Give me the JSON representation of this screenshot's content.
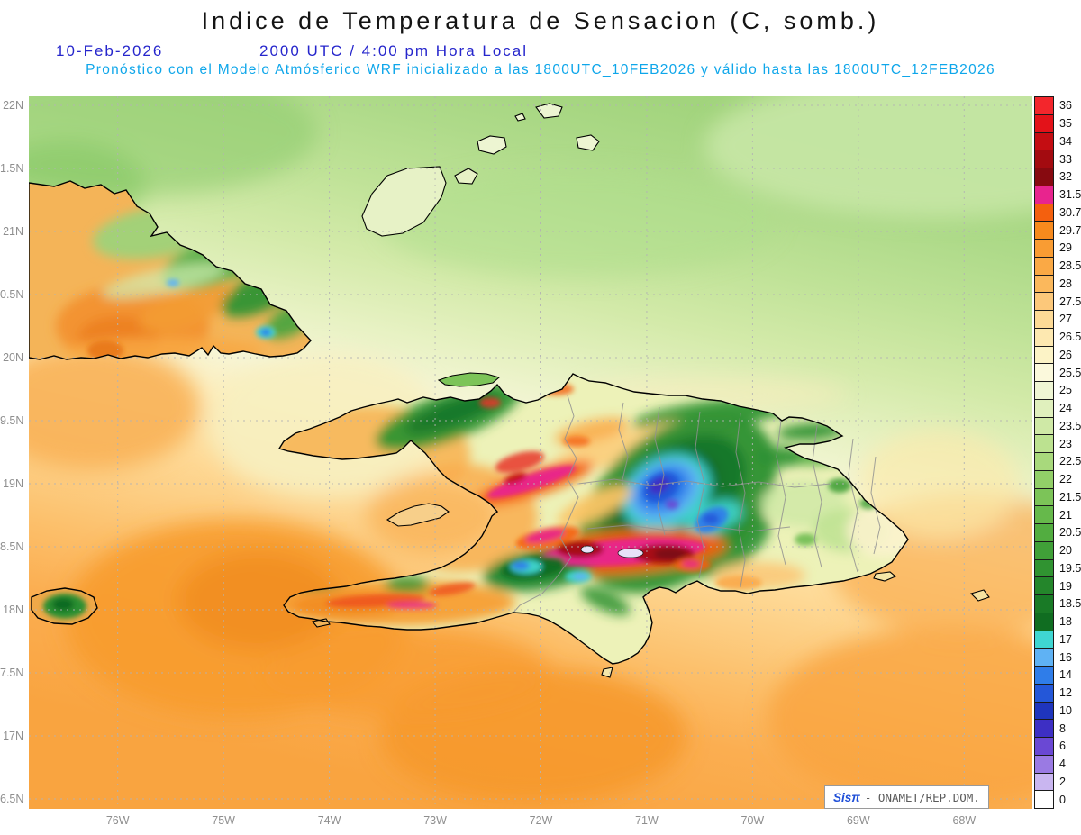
{
  "header": {
    "title": "Indice de Temperatura de Sensacion (C, somb.)",
    "date": "10-Feb-2026",
    "time": "2000 UTC / 4:00 pm Hora Local",
    "model_line": "Pronóstico con el Modelo Atmósferico WRF inicializado a las 1800UTC_10FEB2026 y válido hasta las  1800UTC_12FEB2026"
  },
  "map": {
    "x_tick_labels": [
      "76W",
      "75W",
      "74W",
      "73W",
      "72W",
      "71W",
      "70W",
      "69W",
      "68W"
    ],
    "y_tick_labels": [
      "22N",
      "1.5N",
      "21N",
      "0.5N",
      "20N",
      "9.5N",
      "19N",
      "8.5N",
      "18N",
      "7.5N",
      "17N",
      "6.5N"
    ],
    "credit": {
      "brand": "Sisπ",
      "source": "- ONAMET/REP.DOM."
    }
  },
  "colorbar": {
    "units": "C",
    "levels": [
      {
        "label": "36",
        "color": "#f3262c"
      },
      {
        "label": "35",
        "color": "#e31219"
      },
      {
        "label": "34",
        "color": "#c40d12"
      },
      {
        "label": "33",
        "color": "#a30b10"
      },
      {
        "label": "32",
        "color": "#870a10"
      },
      {
        "label": "31.5",
        "color": "#e8248e"
      },
      {
        "label": "30.7",
        "color": "#f4600e"
      },
      {
        "label": "29.7",
        "color": "#f78a1d"
      },
      {
        "label": "29",
        "color": "#f99c33"
      },
      {
        "label": "28.5",
        "color": "#faa945"
      },
      {
        "label": "28",
        "color": "#fbb85c"
      },
      {
        "label": "27.5",
        "color": "#fcc87a"
      },
      {
        "label": "27",
        "color": "#fdda96"
      },
      {
        "label": "26.5",
        "color": "#fde8b0"
      },
      {
        "label": "26",
        "color": "#fcf3c6"
      },
      {
        "label": "25.5",
        "color": "#fbf9dc"
      },
      {
        "label": "25",
        "color": "#eff6d4"
      },
      {
        "label": "24",
        "color": "#e0f0bd"
      },
      {
        "label": "23.5",
        "color": "#cfe9a6"
      },
      {
        "label": "23",
        "color": "#bce290"
      },
      {
        "label": "22.5",
        "color": "#a8d97c"
      },
      {
        "label": "22",
        "color": "#92cf68"
      },
      {
        "label": "21.5",
        "color": "#7cc458"
      },
      {
        "label": "21",
        "color": "#66b94b"
      },
      {
        "label": "20.5",
        "color": "#52ad40"
      },
      {
        "label": "20",
        "color": "#40a038"
      },
      {
        "label": "19.5",
        "color": "#309331"
      },
      {
        "label": "19",
        "color": "#24862b"
      },
      {
        "label": "18.5",
        "color": "#197a26"
      },
      {
        "label": "18",
        "color": "#106d21"
      },
      {
        "label": "17",
        "color": "#3fd6d2"
      },
      {
        "label": "16",
        "color": "#5fb2f4"
      },
      {
        "label": "14",
        "color": "#2f7de9"
      },
      {
        "label": "12",
        "color": "#2457d8"
      },
      {
        "label": "10",
        "color": "#1f35bd"
      },
      {
        "label": "8",
        "color": "#3d2fc4"
      },
      {
        "label": "6",
        "color": "#6a48d4"
      },
      {
        "label": "4",
        "color": "#9a7ae3"
      },
      {
        "label": "2",
        "color": "#c9b6f0"
      },
      {
        "label": "0",
        "color": "#ffffff"
      }
    ]
  },
  "chart_data": {
    "type": "heatmap",
    "title": "Indice de Temperatura de Sensacion (C, somb.)",
    "valid_time": "10-Feb-2026 2000 UTC / 4:00 pm Hora Local",
    "model": "WRF",
    "initialized": "1800UTC_10FEB2026",
    "valid_until": "1800UTC_12FEB2026",
    "units": "C",
    "x_ticks": [
      "76W",
      "75W",
      "74W",
      "73W",
      "72W",
      "71W",
      "70W",
      "69W",
      "68W"
    ],
    "y_ticks": [
      "22N",
      "1.5N",
      "21N",
      "0.5N",
      "20N",
      "9.5N",
      "19N",
      "8.5N",
      "18N",
      "7.5N",
      "17N",
      "6.5N"
    ],
    "scale_levels_c": [
      0,
      2,
      4,
      6,
      8,
      10,
      12,
      14,
      16,
      17,
      18,
      18.5,
      19,
      19.5,
      20,
      20.5,
      21,
      21.5,
      22,
      22.5,
      23,
      23.5,
      24,
      25,
      25.5,
      26,
      26.5,
      27,
      27.5,
      28,
      28.5,
      29,
      29.7,
      30.7,
      31.5,
      32,
      33,
      34,
      35,
      36
    ],
    "legend_position": "right",
    "grid": true,
    "regions_estimated_c": [
      {
        "region": "Atlántico al norte (mar)",
        "value": "23-25"
      },
      {
        "region": "Mar Caribe al sur (mar)",
        "value": "27.5-29.7"
      },
      {
        "region": "Oriente de Cuba - llanuras",
        "value": "28.5-30.7"
      },
      {
        "region": "Oriente de Cuba - montañas",
        "value": "18.5-23"
      },
      {
        "region": "Haití - valles y costas",
        "value": "29.7-31.5"
      },
      {
        "region": "Valle de Enriquillo / Cul-de-Sac",
        "value": "31.5-34"
      },
      {
        "region": "Cordillera Central (RD)",
        "value": "6-18"
      },
      {
        "region": "Sierra de Bahoruco / Massif de la Hotte",
        "value": "14-19"
      },
      {
        "region": "Llanuras del este de RD",
        "value": "23.5-26"
      },
      {
        "region": "Valle del Cibao (RD)",
        "value": "26.5-28.5"
      }
    ]
  }
}
